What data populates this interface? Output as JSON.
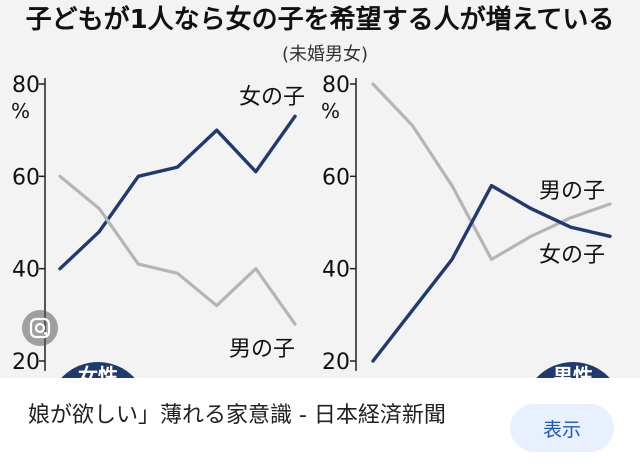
{
  "chart_data": [
    {
      "type": "line",
      "panel_label": "女性",
      "x": [
        1,
        2,
        3,
        4,
        5,
        6,
        7
      ],
      "ylim": [
        20,
        80
      ],
      "yticks": [
        "80",
        "60",
        "40",
        "20"
      ],
      "unit": "%",
      "series": [
        {
          "name": "女の子",
          "values": [
            40,
            48,
            60,
            62,
            70,
            61,
            73
          ]
        },
        {
          "name": "男の子",
          "values": [
            60,
            53,
            41,
            39,
            32,
            40,
            28
          ]
        }
      ]
    },
    {
      "type": "line",
      "panel_label": "男性",
      "x": [
        1,
        2,
        3,
        4,
        5,
        6,
        7
      ],
      "ylim": [
        20,
        80
      ],
      "yticks": [
        "80",
        "60",
        "40",
        "20"
      ],
      "unit": "%",
      "series": [
        {
          "name": "男の子",
          "values": [
            80,
            71,
            58,
            42,
            47,
            51,
            54
          ]
        },
        {
          "name": "女の子",
          "values": [
            20,
            31,
            42,
            58,
            53,
            49,
            47
          ]
        }
      ]
    }
  ],
  "chart_title": "子どもが1人なら女の子を希望する人が増えている",
  "chart_subtitle": "(未婚男女)",
  "colors": {
    "navy": "#1f3a6e",
    "gray": "#b5b5b5",
    "badge": "#1f3a6e"
  },
  "lens_icon": "google-lens-icon",
  "result": {
    "caption": "娘が欲しい」薄れる家意識 - 日本経済新聞",
    "button_label": "表示"
  }
}
